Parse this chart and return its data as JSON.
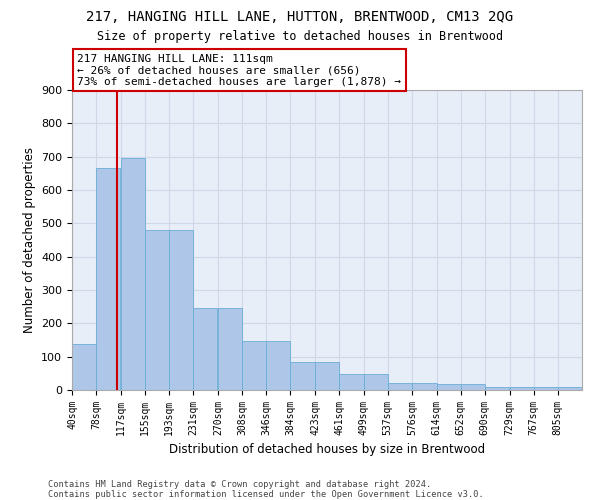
{
  "title": "217, HANGING HILL LANE, HUTTON, BRENTWOOD, CM13 2QG",
  "subtitle": "Size of property relative to detached houses in Brentwood",
  "xlabel": "Distribution of detached houses by size in Brentwood",
  "ylabel": "Number of detached properties",
  "bar_labels": [
    "40sqm",
    "78sqm",
    "117sqm",
    "155sqm",
    "193sqm",
    "231sqm",
    "270sqm",
    "308sqm",
    "346sqm",
    "384sqm",
    "423sqm",
    "461sqm",
    "499sqm",
    "537sqm",
    "576sqm",
    "614sqm",
    "652sqm",
    "690sqm",
    "729sqm",
    "767sqm",
    "805sqm"
  ],
  "bar_heights": [
    137,
    665,
    697,
    480,
    479,
    246,
    246,
    148,
    148,
    85,
    85,
    47,
    47,
    22,
    22,
    17,
    17,
    10,
    10,
    8,
    8
  ],
  "bar_color": "#aec6e8",
  "bar_edge_color": "#6aaed6",
  "property_line_x": 111,
  "property_line_color": "#cc0000",
  "annotation_text": "217 HANGING HILL LANE: 111sqm\n← 26% of detached houses are smaller (656)\n73% of semi-detached houses are larger (1,878) →",
  "annotation_box_color": "#cc0000",
  "ylim": [
    0,
    900
  ],
  "yticks": [
    0,
    100,
    200,
    300,
    400,
    500,
    600,
    700,
    800,
    900
  ],
  "footnote1": "Contains HM Land Registry data © Crown copyright and database right 2024.",
  "footnote2": "Contains public sector information licensed under the Open Government Licence v3.0.",
  "fig_background": "#ffffff",
  "ax_background": "#e8eef8",
  "grid_color": "#d0d8e8",
  "bin_width": 38,
  "title_fontsize": 10,
  "subtitle_fontsize": 8.5
}
